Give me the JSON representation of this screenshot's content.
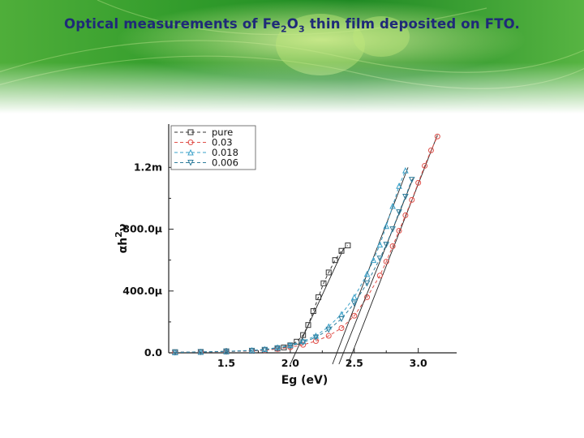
{
  "slide": {
    "title_pre": "Optical measurements of Fe",
    "title_sub1": "2",
    "title_mid": "O",
    "title_sub2": "3",
    "title_post": " thin film deposited on FTO."
  },
  "colors": {
    "title": "#1f2a78",
    "banner_green": "#2f9a2a",
    "banner_light": "#b7e07a"
  },
  "chart_data": {
    "type": "scatter",
    "title": "",
    "xlabel": "Eg (eV)",
    "ylabel": "αhν^2",
    "ylabel_main": "αh",
    "ylabel_sup": "2",
    "ylabel_nu": "ν",
    "xlim": [
      1.05,
      3.3
    ],
    "ylim": [
      0,
      0.00148
    ],
    "x_ticks": [
      1.5,
      2.0,
      2.5,
      3.0
    ],
    "x_tick_labels": [
      "1.5",
      "2.0",
      "2.5",
      "3.0"
    ],
    "y_ticks": [
      0,
      0.0004,
      0.0008,
      0.0012
    ],
    "y_tick_labels": [
      "0.0",
      "400.0μ",
      "800.0μ",
      "1.2m"
    ],
    "legend_position": "top-left",
    "grid": false,
    "series": [
      {
        "name": "pure",
        "color": "#333333",
        "marker": "square",
        "points": [
          [
            1.1,
            4e-06
          ],
          [
            1.3,
            6e-06
          ],
          [
            1.5,
            9e-06
          ],
          [
            1.7,
            1.3e-05
          ],
          [
            1.8,
            1.8e-05
          ],
          [
            1.9,
            2.8e-05
          ],
          [
            1.95,
            3.5e-05
          ],
          [
            2.0,
            4.8e-05
          ],
          [
            2.05,
            7.2e-05
          ],
          [
            2.1,
            0.000115
          ],
          [
            2.14,
            0.00018
          ],
          [
            2.18,
            0.00027
          ],
          [
            2.22,
            0.00036
          ],
          [
            2.26,
            0.00045
          ],
          [
            2.3,
            0.00052
          ],
          [
            2.35,
            0.0006
          ],
          [
            2.4,
            0.00066
          ],
          [
            2.45,
            0.000695
          ]
        ],
        "fit_line": [
          [
            2.0,
            0.0
          ],
          [
            2.42,
            0.00068
          ]
        ],
        "edge_eV": 2.0
      },
      {
        "name": "0.03",
        "color": "#e0504a",
        "marker": "circle",
        "points": [
          [
            1.1,
            3e-06
          ],
          [
            1.3,
            5e-06
          ],
          [
            1.5,
            8e-06
          ],
          [
            1.7,
            1.3e-05
          ],
          [
            1.8,
            1.7e-05
          ],
          [
            1.9,
            2.5e-05
          ],
          [
            2.0,
            3.6e-05
          ],
          [
            2.1,
            5.2e-05
          ],
          [
            2.2,
            7.6e-05
          ],
          [
            2.3,
            0.00011
          ],
          [
            2.4,
            0.00016
          ],
          [
            2.5,
            0.00024
          ],
          [
            2.6,
            0.00036
          ],
          [
            2.7,
            0.0005
          ],
          [
            2.75,
            0.00059
          ],
          [
            2.8,
            0.00069
          ],
          [
            2.85,
            0.00079
          ],
          [
            2.9,
            0.00089
          ],
          [
            2.95,
            0.00099
          ],
          [
            3.0,
            0.0011
          ],
          [
            3.05,
            0.00121
          ],
          [
            3.1,
            0.00131
          ],
          [
            3.15,
            0.0014
          ]
        ],
        "fit_line": [
          [
            2.45,
            0.0
          ],
          [
            3.15,
            0.00141
          ]
        ],
        "edge_eV": 2.45
      },
      {
        "name": "0.018",
        "color": "#3aa0c8",
        "marker": "triangle-up",
        "points": [
          [
            1.1,
            3e-06
          ],
          [
            1.3,
            6e-06
          ],
          [
            1.5,
            1e-05
          ],
          [
            1.7,
            1.6e-05
          ],
          [
            1.8,
            2.3e-05
          ],
          [
            1.9,
            3.4e-05
          ],
          [
            2.0,
            5e-05
          ],
          [
            2.1,
            7.5e-05
          ],
          [
            2.2,
            0.00011
          ],
          [
            2.3,
            0.00017
          ],
          [
            2.4,
            0.00025
          ],
          [
            2.5,
            0.00036
          ],
          [
            2.6,
            0.00051
          ],
          [
            2.65,
            0.0006
          ],
          [
            2.7,
            0.0007
          ],
          [
            2.75,
            0.00082
          ],
          [
            2.8,
            0.00095
          ],
          [
            2.85,
            0.00108
          ],
          [
            2.9,
            0.00118
          ]
        ],
        "fit_line": [
          [
            2.33,
            0.0
          ],
          [
            2.92,
            0.0012
          ]
        ],
        "edge_eV": 2.33
      },
      {
        "name": "0.006",
        "color": "#2f7d9c",
        "marker": "triangle-down",
        "points": [
          [
            1.1,
            3e-06
          ],
          [
            1.3,
            5e-06
          ],
          [
            1.5,
            9e-06
          ],
          [
            1.7,
            1.4e-05
          ],
          [
            1.8,
            2e-05
          ],
          [
            1.9,
            3e-05
          ],
          [
            2.0,
            4.5e-05
          ],
          [
            2.1,
            6.8e-05
          ],
          [
            2.2,
            0.0001
          ],
          [
            2.3,
            0.00015
          ],
          [
            2.4,
            0.00022
          ],
          [
            2.5,
            0.00032
          ],
          [
            2.6,
            0.00045
          ],
          [
            2.7,
            0.00061
          ],
          [
            2.75,
            0.0007
          ],
          [
            2.8,
            0.0008
          ],
          [
            2.85,
            0.00091
          ],
          [
            2.9,
            0.00101
          ],
          [
            2.95,
            0.00112
          ]
        ],
        "fit_line": [
          [
            2.38,
            0.0
          ],
          [
            2.96,
            0.00113
          ]
        ],
        "edge_eV": 2.38
      }
    ]
  }
}
